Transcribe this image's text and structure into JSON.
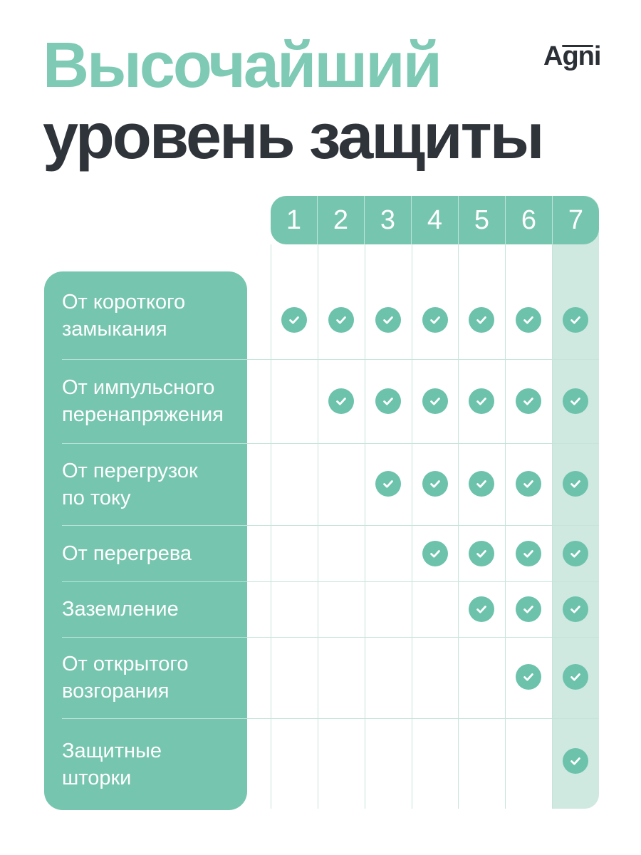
{
  "title": {
    "line1": "Высочайший",
    "line2": "уровень защиты"
  },
  "logo": {
    "text": "Agni"
  },
  "table": {
    "columns": [
      "1",
      "2",
      "3",
      "4",
      "5",
      "6",
      "7"
    ],
    "highlighted_column": "7",
    "rows": [
      {
        "label": "От короткого\nзамыкания",
        "checks": [
          1,
          1,
          1,
          1,
          1,
          1,
          1
        ]
      },
      {
        "label": "От импульсного\nперенапряжения",
        "checks": [
          0,
          1,
          1,
          1,
          1,
          1,
          1
        ]
      },
      {
        "label": "От перегрузок\nпо току",
        "checks": [
          0,
          0,
          1,
          1,
          1,
          1,
          1
        ]
      },
      {
        "label": "От перегрева",
        "checks": [
          0,
          0,
          0,
          1,
          1,
          1,
          1
        ]
      },
      {
        "label": "Заземление",
        "checks": [
          0,
          0,
          0,
          0,
          1,
          1,
          1
        ]
      },
      {
        "label": "От открытого\nвозгорания",
        "checks": [
          0,
          0,
          0,
          0,
          0,
          1,
          1
        ]
      },
      {
        "label": "Защитные\nшторки",
        "checks": [
          0,
          0,
          0,
          0,
          0,
          0,
          1
        ]
      }
    ]
  },
  "colors": {
    "accent_teal": "#76c5ae",
    "title_teal": "#7ecab4",
    "check_teal": "#6cc2ab",
    "column_highlight": "#cfe8e0",
    "grid_line": "#c6e4db",
    "dark_text": "#2f343a"
  }
}
